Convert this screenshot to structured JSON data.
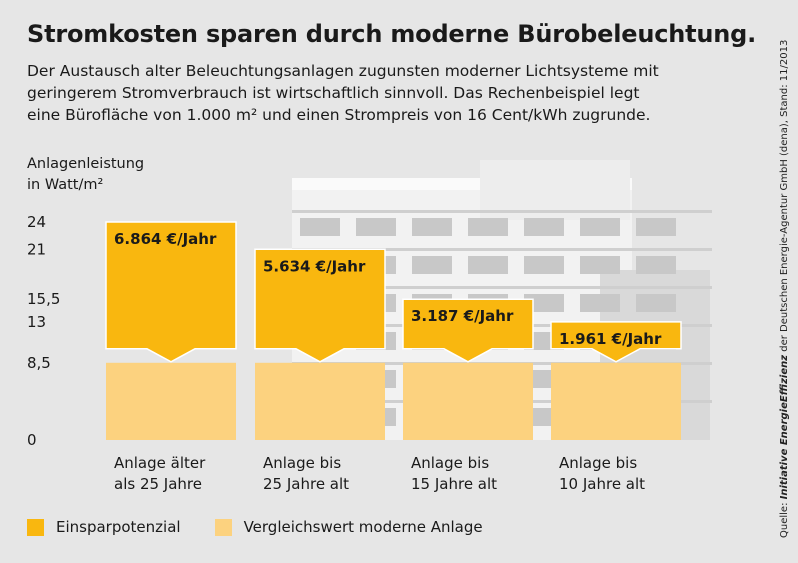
{
  "title": "Stromkosten sparen durch moderne Bürobeleuchtung.",
  "subtitle_lines": [
    "Der Austausch alter Beleuchtungsanlagen zugunsten moderner Lichtsysteme mit",
    "geringerem Stromverbrauch ist wirtschaftlich sinnvoll. Das Rechenbeispiel legt",
    "eine Bürofläche von 1.000 m² und einen Strompreis von 16 Cent/kWh zugrunde."
  ],
  "source": {
    "prefix": "Quelle: ",
    "brand": "Initiative EnergieEffizienz",
    "suffix": " der Deutschen Energie-Agentur GmbH (dena), Stand: 11/2013"
  },
  "colors": {
    "savings": "#f9b70f",
    "modern": "#fcd27f",
    "background": "#e6e6e6"
  },
  "chart_data": {
    "type": "bar",
    "stacked": true,
    "ylabel": [
      "Anlagenleistung",
      "in Watt/m²"
    ],
    "yticks": [
      "0",
      "8,5",
      "13",
      "15,5",
      "21",
      "24"
    ],
    "ytick_values": [
      0,
      8.5,
      13,
      15.5,
      21,
      24
    ],
    "ylim": [
      0,
      24
    ],
    "categories": [
      [
        "Anlage älter",
        "als 25 Jahre"
      ],
      [
        "Anlage bis",
        "25 Jahre alt"
      ],
      [
        "Anlage bis",
        "15 Jahre alt"
      ],
      [
        "Anlage bis",
        "10 Jahre alt"
      ]
    ],
    "totals": [
      24,
      21,
      15.5,
      13
    ],
    "series": [
      {
        "name": "Vergleichswert moderne Anlage",
        "values": [
          8.5,
          8.5,
          8.5,
          8.5
        ],
        "color": "#fcd27f"
      },
      {
        "name": "Einsparpotenzial",
        "values": [
          15.5,
          12.5,
          7,
          4.5
        ],
        "color": "#f9b70f"
      }
    ],
    "data_labels": [
      "6.864 €/Jahr",
      "5.634 €/Jahr",
      "3.187 €/Jahr",
      "1.961 €/Jahr"
    ],
    "legend": [
      "Einsparpotenzial",
      "Vergleichswert moderne Anlage"
    ],
    "legend_position": "bottom-left",
    "grid": false
  }
}
